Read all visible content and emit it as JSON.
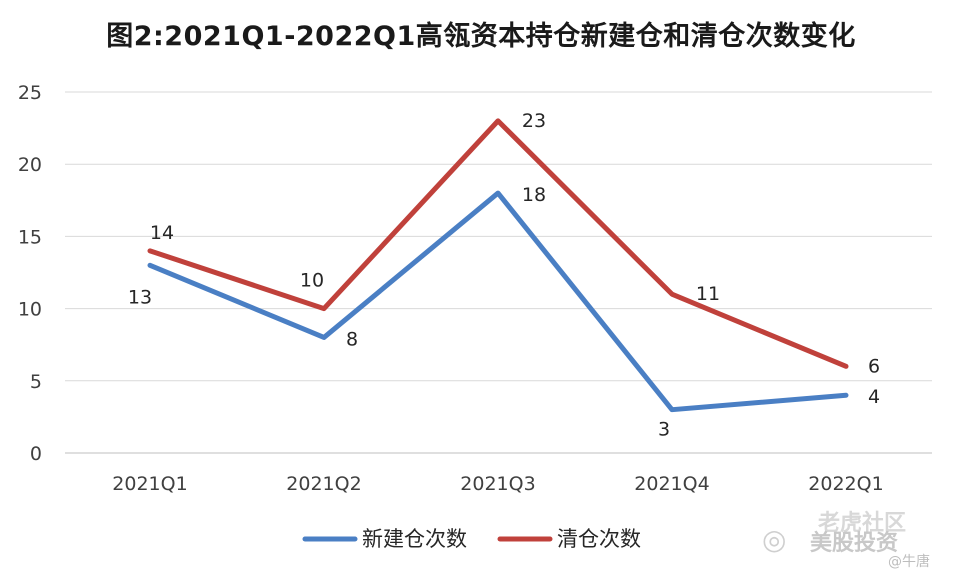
{
  "chart_data": {
    "type": "line",
    "title": "图2:2021Q1-2022Q1高瓴资本持仓新建仓和清仓次数变化",
    "categories": [
      "2021Q1",
      "2021Q2",
      "2021Q3",
      "2021Q4",
      "2022Q1"
    ],
    "series": [
      {
        "name": "新建仓次数",
        "values": [
          13,
          8,
          18,
          3,
          4
        ],
        "color": "#4a7fc4"
      },
      {
        "name": "清仓次数",
        "values": [
          14,
          10,
          23,
          11,
          6
        ],
        "color": "#c0413b"
      }
    ],
    "ylim": [
      0,
      25
    ],
    "yticks": [
      0,
      5,
      10,
      15,
      20,
      25
    ],
    "grid": true,
    "legend": "bottom-center",
    "data_labels": true
  },
  "watermark": {
    "line1": "老虎社区",
    "line2": "美股投资",
    "line3": "@牛唐"
  }
}
